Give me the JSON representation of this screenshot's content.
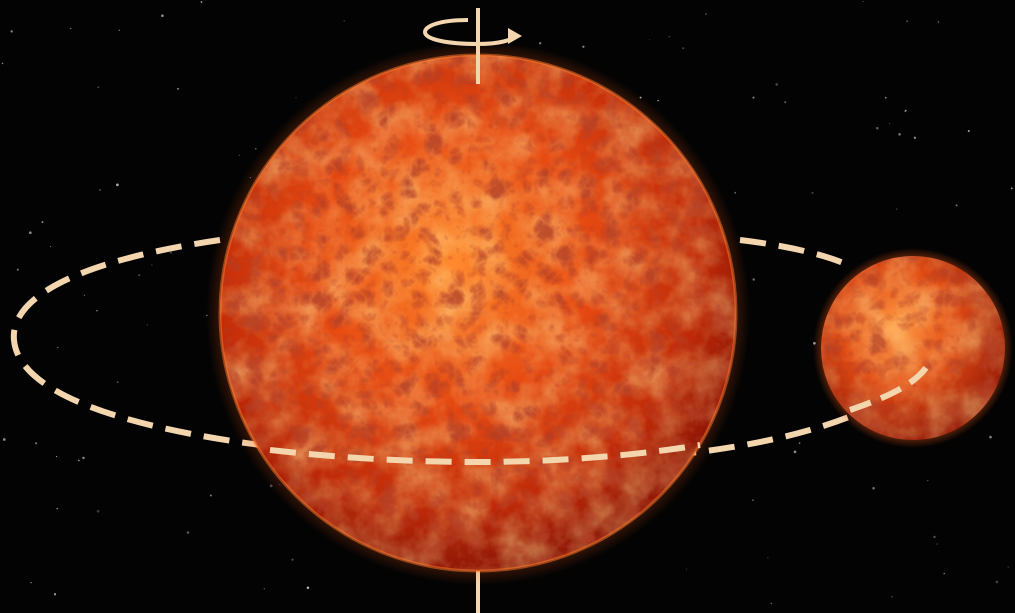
{
  "scene": {
    "background": "#030303",
    "star_color": "#d8d8d8",
    "primary_star": {
      "core": "#ff8a2e",
      "mid": "#e0400f",
      "edge": "#8e1606",
      "glow": "#ff5a14"
    },
    "companion_star": {
      "core": "#ff9440",
      "mid": "#e24c14",
      "edge": "#9a1c08",
      "glow": "#ff6a1e"
    },
    "annotation_color": "#f3d6ae",
    "icons": [
      "rotation-arrow-icon",
      "rotation-axis",
      "orbit-path"
    ]
  }
}
